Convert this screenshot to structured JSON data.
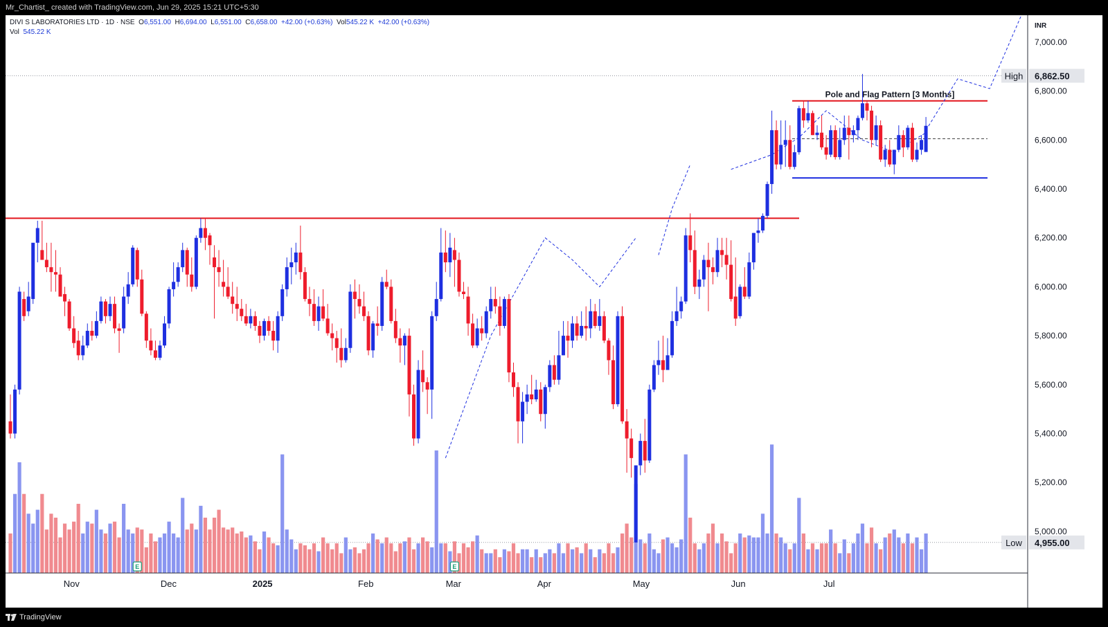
{
  "header": {
    "created_text": "Mr_Chartist_ created with TradingView.com, Jun 29, 2025 15:21 UTC+5:30"
  },
  "legend": {
    "symbol": "DIVI S LABORATORIES LTD · 1D · NSE",
    "o_label": "O",
    "o": "6,551.00",
    "h_label": "H",
    "h": "6,694.00",
    "l_label": "L",
    "l": "6,551.00",
    "c_label": "C",
    "c": "6,658.00",
    "change": "+42.00 (+0.63%)",
    "vol_label": "Vol",
    "vol": "545.22 K",
    "vol_change": "+42.00 (+0.63%)",
    "vol2_label": "Vol",
    "vol2": "545.22 K"
  },
  "footer": {
    "brand": "TradingView"
  },
  "colors": {
    "up": "#1e2fe0",
    "down": "#ee1c2c",
    "up_vol": "#8a95f0",
    "down_vol": "#f08a8f",
    "flag_top": "#e3141c",
    "flag_bottom": "#1e2fe0"
  },
  "chart_data": {
    "type": "candlestick",
    "currency": "INR",
    "ylim": [
      4830,
      7110
    ],
    "y_ticks": [
      5000,
      5200,
      5400,
      5600,
      5800,
      6000,
      6200,
      6400,
      6600,
      6800,
      7000
    ],
    "y_tick_labels": [
      "5,000.00",
      "5,200.00",
      "5,400.00",
      "5,600.00",
      "5,800.00",
      "6,000.00",
      "6,200.00",
      "6,400.00",
      "6,600.00",
      "6,800.00",
      "7,000.00"
    ],
    "x_ticks": [
      {
        "label": "Nov",
        "date": "2024-11-01"
      },
      {
        "label": "Dec",
        "date": "2024-12-02"
      },
      {
        "label": "2025",
        "date": "2025-01-01"
      },
      {
        "label": "Feb",
        "date": "2025-02-03"
      },
      {
        "label": "Mar",
        "date": "2025-03-03"
      },
      {
        "label": "Apr",
        "date": "2025-04-01"
      },
      {
        "label": "May",
        "date": "2025-05-02"
      },
      {
        "label": "Jun",
        "date": "2025-06-02"
      },
      {
        "label": "Jul",
        "date": "2025-07-01"
      }
    ],
    "high_marker": {
      "label": "High",
      "value": 6862.5,
      "text": "6,862.50"
    },
    "low_marker": {
      "label": "Low",
      "value": 4955,
      "text": "4,955.00"
    },
    "resistance_level": 6280,
    "annotation": {
      "text": "Pole and Flag Pattern [3 Months]",
      "upper": 6760,
      "lower": 6445,
      "mid": 6605
    },
    "projection": [
      [
        6480,
        6610
      ],
      [
        6560,
        6760
      ],
      [
        6640,
        6850
      ],
      [
        6684,
        6810
      ],
      [
        6740,
        7110
      ]
    ],
    "series": [
      [
        5450,
        5560,
        5380,
        5400,
        20
      ],
      [
        5400,
        5600,
        5380,
        5580,
        40
      ],
      [
        5580,
        6000,
        5560,
        5980,
        56
      ],
      [
        5950,
        5980,
        5860,
        5880,
        40
      ],
      [
        5900,
        6020,
        5880,
        5960,
        30
      ],
      [
        5950,
        6100,
        5930,
        6180,
        25
      ],
      [
        6180,
        6270,
        6100,
        6240,
        32
      ],
      [
        6150,
        6270,
        6120,
        6110,
        40
      ],
      [
        6110,
        6180,
        6060,
        6080,
        22
      ],
      [
        6080,
        6180,
        5980,
        6060,
        30
      ],
      [
        6060,
        6150,
        5980,
        6050,
        28
      ],
      [
        6050,
        6080,
        5960,
        5960,
        18
      ],
      [
        5970,
        6000,
        5880,
        5940,
        25
      ],
      [
        5940,
        5950,
        5820,
        5830,
        22
      ],
      [
        5830,
        5880,
        5750,
        5770,
        26
      ],
      [
        5780,
        5820,
        5700,
        5720,
        35
      ],
      [
        5720,
        5800,
        5700,
        5760,
        20
      ],
      [
        5760,
        5850,
        5750,
        5820,
        26
      ],
      [
        5820,
        5860,
        5780,
        5800,
        25
      ],
      [
        5800,
        5900,
        5790,
        5860,
        32
      ],
      [
        5860,
        5960,
        5850,
        5940,
        22
      ],
      [
        5940,
        5950,
        5850,
        5880,
        20
      ],
      [
        5880,
        5960,
        5860,
        5930,
        25
      ],
      [
        5930,
        5960,
        5810,
        5830,
        26
      ],
      [
        5830,
        5850,
        5730,
        5820,
        18
      ],
      [
        5830,
        6000,
        5810,
        5960,
        35
      ],
      [
        5960,
        6060,
        5930,
        6010,
        22
      ],
      [
        6010,
        6170,
        6000,
        6160,
        20
      ],
      [
        6150,
        6160,
        6000,
        6030,
        23
      ],
      [
        6030,
        6070,
        5880,
        5890,
        22
      ],
      [
        5890,
        5900,
        5750,
        5780,
        13
      ],
      [
        5780,
        5830,
        5720,
        5740,
        20
      ],
      [
        5740,
        5780,
        5700,
        5710,
        16
      ],
      [
        5710,
        5780,
        5700,
        5760,
        18
      ],
      [
        5760,
        5880,
        5750,
        5850,
        20
      ],
      [
        5850,
        6000,
        5830,
        5990,
        26
      ],
      [
        5990,
        6100,
        5960,
        6020,
        20
      ],
      [
        6020,
        6100,
        6000,
        6080,
        18
      ],
      [
        6080,
        6180,
        6060,
        6150,
        38
      ],
      [
        6150,
        6160,
        6000,
        6050,
        22
      ],
      [
        6050,
        6120,
        5980,
        6000,
        25
      ],
      [
        6000,
        6210,
        5990,
        6200,
        22
      ],
      [
        6200,
        6280,
        6180,
        6240,
        34
      ],
      [
        6240,
        6280,
        6150,
        6200,
        28
      ],
      [
        6210,
        6220,
        6090,
        6170,
        22
      ],
      [
        6120,
        6170,
        5870,
        6080,
        28
      ],
      [
        6080,
        6150,
        6000,
        6060,
        32
      ],
      [
        6020,
        6110,
        5960,
        6000,
        23
      ],
      [
        6000,
        6080,
        5950,
        5960,
        22
      ],
      [
        5960,
        6020,
        5890,
        5930,
        23
      ],
      [
        5930,
        6000,
        5860,
        5910,
        20
      ],
      [
        5910,
        5950,
        5860,
        5880,
        21
      ],
      [
        5880,
        5930,
        5840,
        5850,
        18
      ],
      [
        5850,
        5910,
        5830,
        5880,
        19
      ],
      [
        5880,
        5900,
        5820,
        5840,
        16
      ],
      [
        5840,
        5860,
        5770,
        5800,
        12
      ],
      [
        5800,
        5870,
        5780,
        5860,
        21
      ],
      [
        5860,
        5880,
        5800,
        5820,
        18
      ],
      [
        5820,
        5860,
        5740,
        5780,
        15
      ],
      [
        5780,
        5900,
        5730,
        5880,
        14
      ],
      [
        5880,
        6010,
        5860,
        5990,
        60
      ],
      [
        5990,
        6120,
        5960,
        6080,
        22
      ],
      [
        6080,
        6160,
        6010,
        6100,
        17
      ],
      [
        6100,
        6180,
        6050,
        6140,
        12
      ],
      [
        6140,
        6250,
        6030,
        6060,
        15
      ],
      [
        6060,
        6080,
        5940,
        5950,
        14
      ],
      [
        5950,
        6000,
        5880,
        5930,
        12
      ],
      [
        5930,
        5990,
        5840,
        5860,
        15
      ],
      [
        5860,
        5960,
        5820,
        5920,
        11
      ],
      [
        5920,
        5990,
        5860,
        5870,
        18
      ],
      [
        5870,
        5930,
        5800,
        5810,
        15
      ],
      [
        5810,
        5850,
        5740,
        5790,
        12
      ],
      [
        5790,
        5820,
        5690,
        5750,
        15
      ],
      [
        5750,
        5830,
        5670,
        5700,
        10
      ],
      [
        5700,
        5790,
        5690,
        5750,
        18
      ],
      [
        5750,
        6010,
        5730,
        5980,
        12
      ],
      [
        5980,
        6030,
        5870,
        5950,
        13
      ],
      [
        5950,
        6010,
        5890,
        5920,
        10
      ],
      [
        5920,
        5980,
        5860,
        5880,
        12
      ],
      [
        5880,
        5900,
        5720,
        5740,
        15
      ],
      [
        5740,
        5860,
        5710,
        5850,
        20
      ],
      [
        5850,
        5920,
        5800,
        5840,
        17
      ],
      [
        5840,
        6040,
        5820,
        6020,
        15
      ],
      [
        6020,
        6070,
        5990,
        6000,
        18
      ],
      [
        6000,
        6030,
        5850,
        5860,
        15
      ],
      [
        5860,
        5910,
        5770,
        5790,
        11
      ],
      [
        5790,
        5830,
        5690,
        5760,
        15
      ],
      [
        5760,
        5810,
        5680,
        5800,
        16
      ],
      [
        5800,
        5830,
        5470,
        5560,
        18
      ],
      [
        5560,
        5600,
        5350,
        5380,
        12
      ],
      [
        5380,
        5700,
        5360,
        5660,
        15
      ],
      [
        5660,
        5740,
        5570,
        5610,
        18
      ],
      [
        5610,
        5630,
        5480,
        5580,
        16
      ],
      [
        5580,
        5900,
        5460,
        5880,
        13
      ],
      [
        5880,
        6020,
        5860,
        5950,
        62
      ],
      [
        5950,
        6240,
        5940,
        6140,
        15
      ],
      [
        6140,
        6230,
        6060,
        6100,
        15
      ],
      [
        6100,
        6220,
        6040,
        6160,
        11
      ],
      [
        6150,
        6200,
        6000,
        6110,
        16
      ],
      [
        6110,
        6140,
        5960,
        5980,
        10
      ],
      [
        5980,
        6020,
        5950,
        5970,
        15
      ],
      [
        5960,
        6000,
        5800,
        5850,
        13
      ],
      [
        5850,
        5890,
        5750,
        5760,
        16
      ],
      [
        5760,
        5870,
        5750,
        5830,
        19
      ],
      [
        5830,
        5880,
        5780,
        5810,
        12
      ],
      [
        5810,
        5920,
        5790,
        5900,
        10
      ],
      [
        5900,
        6000,
        5870,
        5950,
        10
      ],
      [
        5950,
        6000,
        5890,
        5920,
        12
      ],
      [
        5920,
        5960,
        5800,
        5840,
        8
      ],
      [
        5840,
        5960,
        5830,
        5950,
        12
      ],
      [
        5950,
        5970,
        5610,
        5650,
        11
      ],
      [
        5650,
        5690,
        5550,
        5590,
        15
      ],
      [
        5590,
        5610,
        5360,
        5450,
        10
      ],
      [
        5450,
        5570,
        5360,
        5530,
        12
      ],
      [
        5530,
        5600,
        5480,
        5560,
        12
      ],
      [
        5560,
        5640,
        5520,
        5540,
        8
      ],
      [
        5540,
        5620,
        5530,
        5580,
        12
      ],
      [
        5580,
        5610,
        5450,
        5480,
        8
      ],
      [
        5480,
        5600,
        5420,
        5590,
        10
      ],
      [
        5590,
        5700,
        5570,
        5680,
        12
      ],
      [
        5680,
        5720,
        5600,
        5620,
        10
      ],
      [
        5620,
        5820,
        5600,
        5720,
        15
      ],
      [
        5720,
        5860,
        5720,
        5800,
        10
      ],
      [
        5800,
        5860,
        5710,
        5780,
        15
      ],
      [
        5780,
        5880,
        5750,
        5850,
        12
      ],
      [
        5850,
        5880,
        5780,
        5800,
        13
      ],
      [
        5800,
        5900,
        5790,
        5840,
        10
      ],
      [
        5840,
        5920,
        5780,
        5830,
        15
      ],
      [
        5830,
        5950,
        5790,
        5900,
        12
      ],
      [
        5900,
        5930,
        5830,
        5840,
        8
      ],
      [
        5840,
        5950,
        5820,
        5880,
        12
      ],
      [
        5880,
        5900,
        5770,
        5780,
        10
      ],
      [
        5780,
        5790,
        5640,
        5700,
        15
      ],
      [
        5700,
        5760,
        5500,
        5520,
        10
      ],
      [
        5520,
        5900,
        5510,
        5880,
        13
      ],
      [
        5880,
        5920,
        5440,
        5450,
        20
      ],
      [
        5450,
        5500,
        5240,
        5380,
        25
      ],
      [
        5380,
        5420,
        5220,
        5300,
        18
      ],
      [
        4955,
        5270,
        4955,
        5270,
        45
      ],
      [
        5270,
        5400,
        5230,
        5370,
        17
      ],
      [
        5370,
        5460,
        5240,
        5290,
        15
      ],
      [
        5290,
        5600,
        5280,
        5580,
        20
      ],
      [
        5580,
        5700,
        5570,
        5680,
        12
      ],
      [
        5680,
        5780,
        5640,
        5700,
        10
      ],
      [
        5700,
        5800,
        5610,
        5660,
        17
      ],
      [
        5660,
        5790,
        5670,
        5720,
        18
      ],
      [
        5720,
        5900,
        5710,
        5860,
        15
      ],
      [
        5860,
        6000,
        5840,
        5900,
        13
      ],
      [
        5900,
        5960,
        5870,
        5940,
        17
      ],
      [
        5940,
        6240,
        5930,
        6210,
        60
      ],
      [
        6210,
        6300,
        6100,
        6150,
        28
      ],
      [
        6150,
        6230,
        5970,
        6000,
        15
      ],
      [
        6000,
        6070,
        5950,
        6030,
        12
      ],
      [
        6030,
        6130,
        6000,
        6110,
        15
      ],
      [
        6110,
        6180,
        5900,
        6080,
        20
      ],
      [
        6080,
        6120,
        6010,
        6060,
        25
      ],
      [
        6060,
        6200,
        6040,
        6150,
        15
      ],
      [
        6150,
        6200,
        6080,
        6130,
        20
      ],
      [
        6130,
        6200,
        6030,
        6090,
        16
      ],
      [
        6090,
        6190,
        5940,
        5950,
        10
      ],
      [
        5960,
        6120,
        5840,
        5870,
        15
      ],
      [
        5880,
        6010,
        5870,
        6000,
        20
      ],
      [
        6000,
        6080,
        5950,
        5960,
        18
      ],
      [
        5960,
        6140,
        5950,
        6100,
        19
      ],
      [
        6100,
        6220,
        6070,
        6220,
        18
      ],
      [
        6220,
        6280,
        6180,
        6230,
        18
      ],
      [
        6230,
        6300,
        6220,
        6290,
        30
      ],
      [
        6290,
        6430,
        6280,
        6420,
        20
      ],
      [
        6420,
        6720,
        6380,
        6640,
        65
      ],
      [
        6640,
        6680,
        6480,
        6500,
        20
      ],
      [
        6500,
        6680,
        6480,
        6580,
        18
      ],
      [
        6580,
        6680,
        6490,
        6600,
        15
      ],
      [
        6600,
        6660,
        6480,
        6490,
        12
      ],
      [
        6490,
        6580,
        6480,
        6550,
        15
      ],
      [
        6550,
        6740,
        6540,
        6730,
        38
      ],
      [
        6730,
        6760,
        6650,
        6680,
        20
      ],
      [
        6680,
        6760,
        6670,
        6710,
        12
      ],
      [
        6710,
        6720,
        6620,
        6620,
        15
      ],
      [
        6620,
        6660,
        6600,
        6630,
        12
      ],
      [
        6630,
        6700,
        6560,
        6570,
        15
      ],
      [
        6570,
        6620,
        6520,
        6540,
        15
      ],
      [
        6540,
        6660,
        6530,
        6640,
        22
      ],
      [
        6640,
        6660,
        6520,
        6530,
        15
      ],
      [
        6530,
        6650,
        6520,
        6600,
        10
      ],
      [
        6600,
        6700,
        6580,
        6650,
        17
      ],
      [
        6650,
        6700,
        6520,
        6620,
        10
      ],
      [
        6620,
        6660,
        6590,
        6640,
        15
      ],
      [
        6640,
        6700,
        6600,
        6690,
        20
      ],
      [
        6690,
        6870,
        6680,
        6750,
        25
      ],
      [
        6750,
        6760,
        6680,
        6720,
        15
      ],
      [
        6720,
        6740,
        6570,
        6600,
        23
      ],
      [
        6600,
        6700,
        6580,
        6660,
        15
      ],
      [
        6660,
        6680,
        6510,
        6520,
        12
      ],
      [
        6520,
        6580,
        6490,
        6560,
        18
      ],
      [
        6560,
        6600,
        6490,
        6500,
        20
      ],
      [
        6500,
        6560,
        6460,
        6560,
        22
      ],
      [
        6560,
        6660,
        6550,
        6620,
        18
      ],
      [
        6620,
        6640,
        6530,
        6570,
        15
      ],
      [
        6570,
        6660,
        6560,
        6650,
        20
      ],
      [
        6650,
        6670,
        6510,
        6520,
        15
      ],
      [
        6520,
        6590,
        6510,
        6560,
        18
      ],
      [
        6560,
        6620,
        6540,
        6600,
        12
      ],
      [
        6551,
        6694,
        6551,
        6658,
        20
      ]
    ]
  }
}
